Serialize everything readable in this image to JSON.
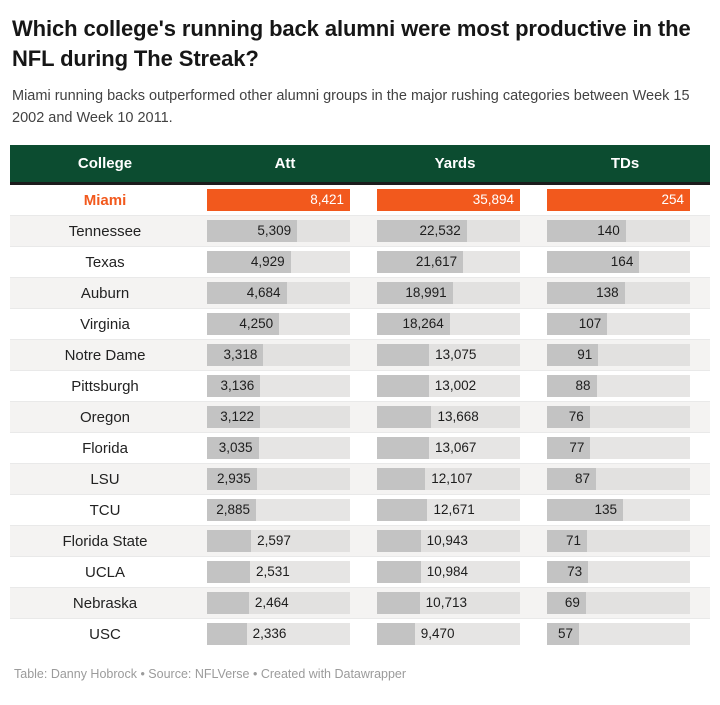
{
  "title": "Which college's running back alumni were most productive in the NFL during The Streak?",
  "subtitle": "Miami running backs outperformed other alumni groups in the major rushing categories between Week 15 2002 and Week 10 2011.",
  "footer": {
    "text": "Table: Danny Hobrock • Source: NFLVerse • Created with Datawrapper"
  },
  "colors": {
    "header_green": "#0c4c30",
    "highlight_orange": "#f2591d",
    "bar_gray": "#c3c3c3",
    "track_gray": "#e6e5e4",
    "stripe_bg": "#f4f3f2"
  },
  "chart_data": {
    "type": "table",
    "title": "Which college's running back alumni were most productive in the NFL during The Streak?",
    "columns": [
      "College",
      "Att",
      "Yards",
      "TDs"
    ],
    "bar_columns": [
      "Att",
      "Yards",
      "TDs"
    ],
    "column_max": {
      "att": 8421,
      "yards": 35894,
      "tds": 254
    },
    "highlight_row": "Miami",
    "rows": [
      {
        "college": "Miami",
        "att": 8421,
        "yards": 35894,
        "tds": 254
      },
      {
        "college": "Tennessee",
        "att": 5309,
        "yards": 22532,
        "tds": 140
      },
      {
        "college": "Texas",
        "att": 4929,
        "yards": 21617,
        "tds": 164
      },
      {
        "college": "Auburn",
        "att": 4684,
        "yards": 18991,
        "tds": 138
      },
      {
        "college": "Virginia",
        "att": 4250,
        "yards": 18264,
        "tds": 107
      },
      {
        "college": "Notre Dame",
        "att": 3318,
        "yards": 13075,
        "tds": 91
      },
      {
        "college": "Pittsburgh",
        "att": 3136,
        "yards": 13002,
        "tds": 88
      },
      {
        "college": "Oregon",
        "att": 3122,
        "yards": 13668,
        "tds": 76
      },
      {
        "college": "Florida",
        "att": 3035,
        "yards": 13067,
        "tds": 77
      },
      {
        "college": "LSU",
        "att": 2935,
        "yards": 12107,
        "tds": 87
      },
      {
        "college": "TCU",
        "att": 2885,
        "yards": 12671,
        "tds": 135
      },
      {
        "college": "Florida State",
        "att": 2597,
        "yards": 10943,
        "tds": 71
      },
      {
        "college": "UCLA",
        "att": 2531,
        "yards": 10984,
        "tds": 73
      },
      {
        "college": "Nebraska",
        "att": 2464,
        "yards": 10713,
        "tds": 69
      },
      {
        "college": "USC",
        "att": 2336,
        "yards": 9470,
        "tds": 57
      }
    ]
  }
}
